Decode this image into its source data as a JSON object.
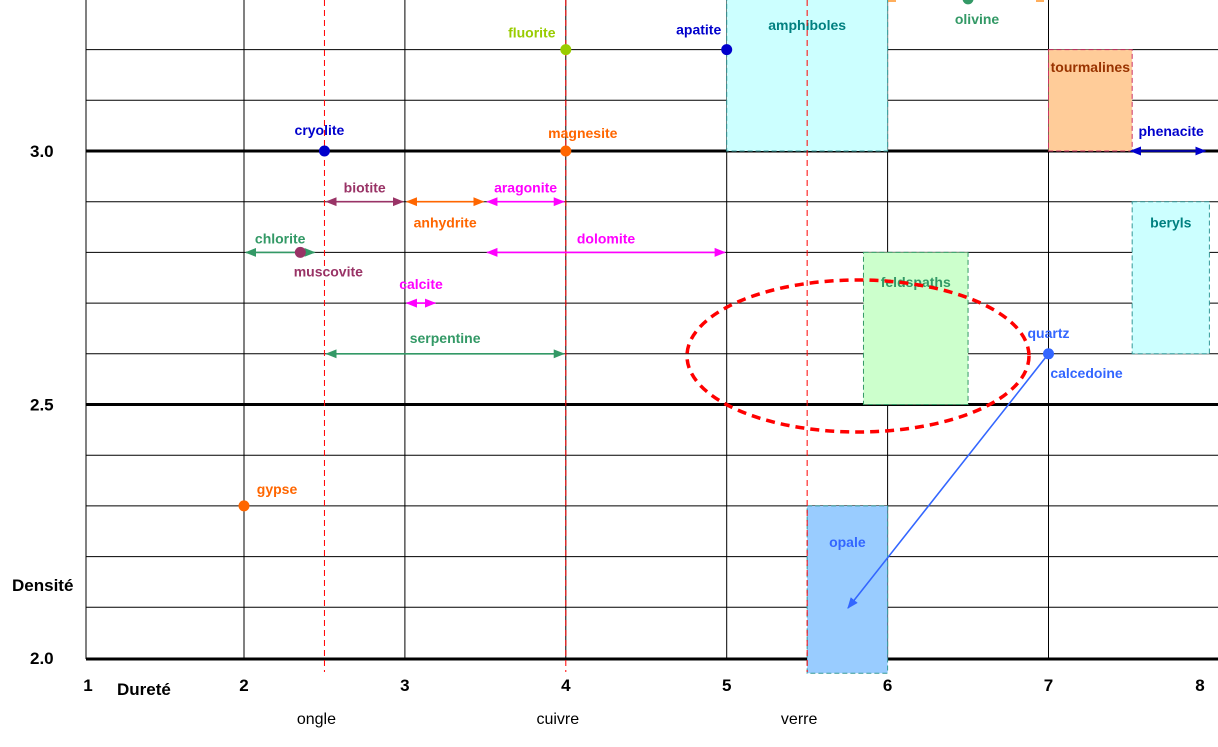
{
  "chart_data": {
    "type": "scatter",
    "title": "",
    "xlabel": "Dureté",
    "ylabel": "Densité",
    "xlim": [
      1,
      8
    ],
    "ylim": [
      1.95,
      3.3
    ],
    "x_ticks": [
      "1",
      "2",
      "3",
      "4",
      "5",
      "6",
      "7",
      "8"
    ],
    "y_ticks": [
      "2.0",
      "2.5",
      "3.0"
    ],
    "reference_lines": [
      {
        "label": "ongle",
        "x": 2.5
      },
      {
        "label": "cuivre",
        "x": 4
      },
      {
        "label": "verre",
        "x": 5.5
      }
    ],
    "points": [
      {
        "name": "fluorite",
        "x": 4,
        "y": 3.2,
        "color": "#99cc00"
      },
      {
        "name": "apatite",
        "x": 5,
        "y": 3.2,
        "color": "#0000cc"
      },
      {
        "name": "olivine",
        "x": 6.5,
        "y": 3.3,
        "color": "#339966"
      },
      {
        "name": "cryolite",
        "x": 2.5,
        "y": 3.0,
        "color": "#0000cc"
      },
      {
        "name": "magnesite",
        "x": 4,
        "y": 3.0,
        "color": "#ff6600"
      },
      {
        "name": "muscovite",
        "x": 2.35,
        "y": 2.8,
        "color": "#993366"
      },
      {
        "name": "quartz",
        "x": 7,
        "y": 2.6,
        "color": "#3366ff"
      },
      {
        "name": "gypse",
        "x": 2,
        "y": 2.3,
        "color": "#ff6600"
      }
    ],
    "extra_labels": [
      {
        "name": "calcedoine",
        "color": "#3366ff"
      }
    ],
    "ranges": [
      {
        "name": "biotite",
        "x": [
          2.5,
          3
        ],
        "y": 2.9,
        "color": "#993366"
      },
      {
        "name": "anhydrite",
        "x": [
          3,
          3.5
        ],
        "y": 2.9,
        "color": "#ff6600"
      },
      {
        "name": "aragonite",
        "x": [
          3.5,
          4
        ],
        "y": 2.9,
        "color": "#ff00ff"
      },
      {
        "name": "chlorite",
        "x": [
          2,
          2.45
        ],
        "y": 2.8,
        "color": "#339966"
      },
      {
        "name": "dolomite",
        "x": [
          3.5,
          5
        ],
        "y": 2.8,
        "color": "#ff00ff"
      },
      {
        "name": "calcite",
        "x": [
          3,
          3.2
        ],
        "y": 2.7,
        "color": "#ff00ff"
      },
      {
        "name": "serpentine",
        "x": [
          2.5,
          4
        ],
        "y": 2.6,
        "color": "#339966"
      },
      {
        "name": "phenacite",
        "x": [
          7.5,
          8
        ],
        "y": 3.0,
        "color": "#0000cc"
      }
    ],
    "boxes": [
      {
        "name": "amphiboles",
        "x": [
          5,
          6
        ],
        "y": [
          3.0,
          3.3
        ],
        "fill": "#ccffff",
        "stroke": "#339999",
        "text": "#008080"
      },
      {
        "name": "tourmalines",
        "x": [
          7,
          7.52
        ],
        "y": [
          3.0,
          3.2
        ],
        "fill": "#ffcc99",
        "stroke": "#cc3366",
        "text": "#993300"
      },
      {
        "name": "beryls",
        "x": [
          7.52,
          8
        ],
        "y": [
          2.6,
          2.9
        ],
        "fill": "#ccffff",
        "stroke": "#339999",
        "text": "#008080"
      },
      {
        "name": "feldspaths",
        "x": [
          5.85,
          6.5
        ],
        "y": [
          2.5,
          2.8
        ],
        "fill": "#ccffcc",
        "stroke": "#339966",
        "text": "#339966"
      },
      {
        "name": "opale",
        "x": [
          5.5,
          6
        ],
        "y": [
          1.97,
          2.3
        ],
        "fill": "#99ccff",
        "stroke": "#339999",
        "text": "#3366ff"
      }
    ],
    "grid": true
  }
}
